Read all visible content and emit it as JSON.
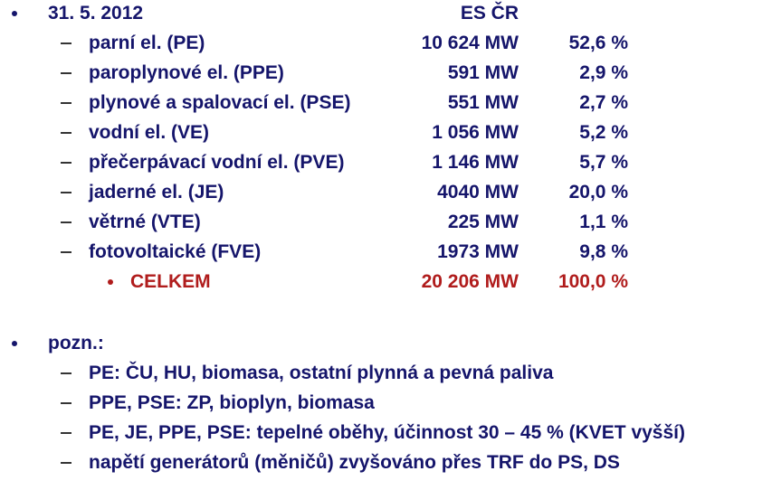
{
  "header": {
    "date": "31. 5. 2012",
    "column": "ES ČR"
  },
  "rows": [
    {
      "label": "parní el. (PE)",
      "power": "10 624 MW",
      "share": "52,6 %"
    },
    {
      "label": "paroplynové el. (PPE)",
      "power": "591 MW",
      "share": "2,9 %"
    },
    {
      "label": "plynové a spalovací el. (PSE)",
      "power": "551 MW",
      "share": "2,7 %"
    },
    {
      "label": "vodní el. (VE)",
      "power": "1 056 MW",
      "share": "5,2 %"
    },
    {
      "label": "přečerpávací vodní el. (PVE)",
      "power": "1 146 MW",
      "share": "5,7 %"
    },
    {
      "label": "jaderné el. (JE)",
      "power": "4040 MW",
      "share": "20,0 %"
    },
    {
      "label": "větrné (VTE)",
      "power": "225 MW",
      "share": "1,1 %"
    },
    {
      "label": "fotovoltaické (FVE)",
      "power": "1973 MW",
      "share": "9,8 %"
    }
  ],
  "total": {
    "label": "CELKEM",
    "power": "20 206 MW",
    "share": "100,0 %"
  },
  "notes": {
    "title": "pozn.:",
    "items": [
      "PE: ČU, HU, biomasa, ostatní plynná a pevná paliva",
      "PPE, PSE: ZP, bioplyn, biomasa",
      "PE, JE, PPE, PSE: tepelné oběhy, účinnost 30 – 45 % (KVET vyšší)",
      "napětí generátorů (měničů) zvyšováno přes TRF do PS, DS"
    ]
  }
}
